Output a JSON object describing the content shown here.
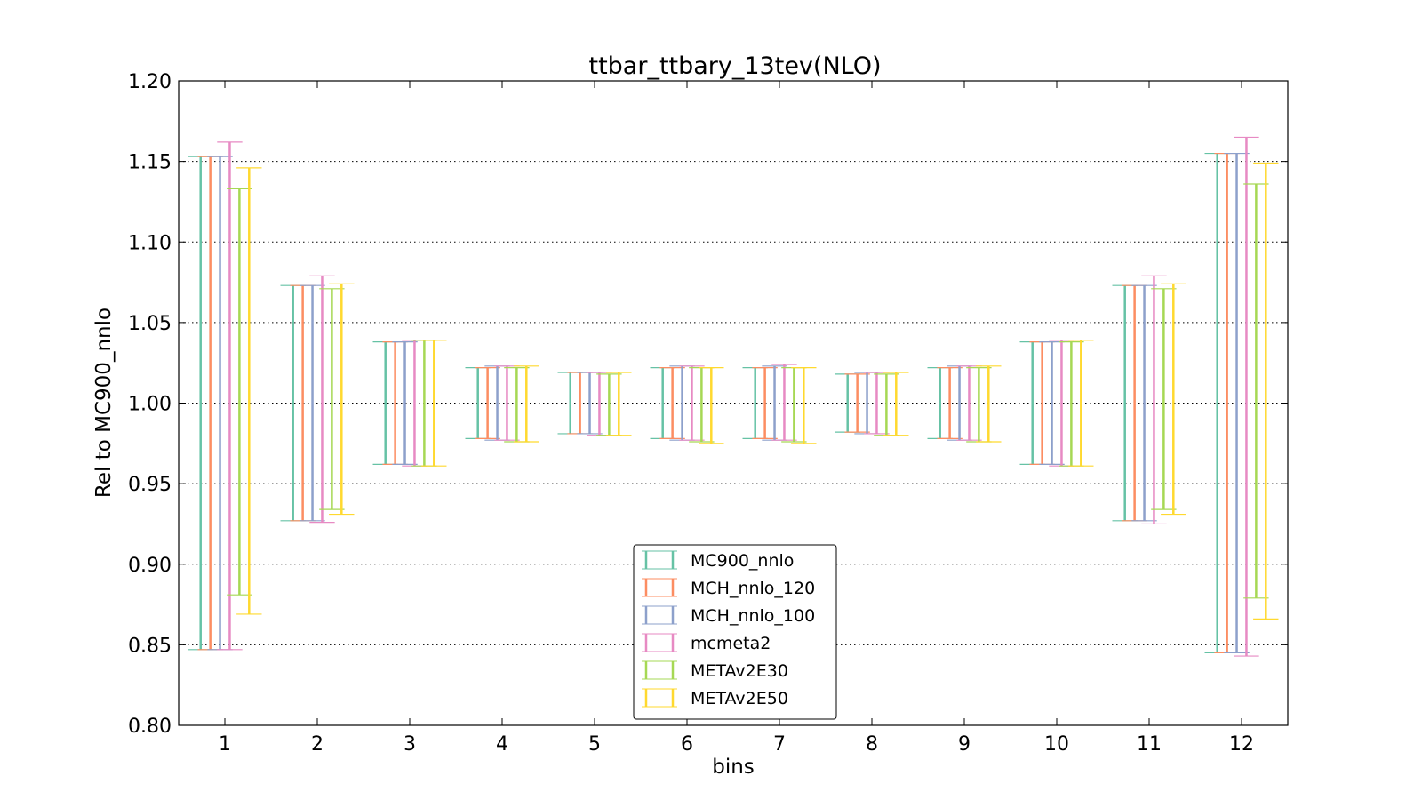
{
  "chart_data": {
    "type": "errorbar",
    "title": "ttbar_ttbary_13tev(NLO)",
    "xlabel": "bins",
    "ylabel": "Rel to MC900_nnlo",
    "ylim": [
      0.8,
      1.2
    ],
    "yticks": [
      "0.80",
      "0.85",
      "0.90",
      "0.95",
      "1.00",
      "1.05",
      "1.10",
      "1.15",
      "1.20"
    ],
    "categories": [
      "1",
      "2",
      "3",
      "4",
      "5",
      "6",
      "7",
      "8",
      "9",
      "10",
      "11",
      "12"
    ],
    "grid": "horizontal dotted",
    "legend_position": "lower center",
    "series": [
      {
        "name": "MC900_nnlo",
        "color": "#66c2a5",
        "low": [
          0.847,
          0.927,
          0.962,
          0.978,
          0.981,
          0.978,
          0.978,
          0.982,
          0.978,
          0.962,
          0.927,
          0.845
        ],
        "high": [
          1.153,
          1.073,
          1.038,
          1.022,
          1.019,
          1.022,
          1.022,
          1.018,
          1.022,
          1.038,
          1.073,
          1.155
        ]
      },
      {
        "name": "MCH_nnlo_120",
        "color": "#fc8d62",
        "low": [
          0.847,
          0.927,
          0.962,
          0.978,
          0.981,
          0.978,
          0.978,
          0.982,
          0.978,
          0.962,
          0.927,
          0.845
        ],
        "high": [
          1.153,
          1.073,
          1.038,
          1.022,
          1.019,
          1.022,
          1.022,
          1.018,
          1.022,
          1.038,
          1.073,
          1.155
        ]
      },
      {
        "name": "MCH_nnlo_100",
        "color": "#8da0cb",
        "low": [
          0.847,
          0.927,
          0.962,
          0.977,
          0.981,
          0.977,
          0.977,
          0.981,
          0.977,
          0.962,
          0.927,
          0.845
        ],
        "high": [
          1.153,
          1.073,
          1.038,
          1.023,
          1.019,
          1.023,
          1.023,
          1.019,
          1.023,
          1.038,
          1.073,
          1.155
        ]
      },
      {
        "name": "mcmeta2",
        "color": "#e78ac3",
        "low": [
          0.847,
          0.926,
          0.961,
          0.977,
          0.98,
          0.977,
          0.977,
          0.981,
          0.977,
          0.961,
          0.925,
          0.843
        ],
        "high": [
          1.162,
          1.079,
          1.039,
          1.023,
          1.019,
          1.023,
          1.024,
          1.019,
          1.023,
          1.039,
          1.079,
          1.165
        ]
      },
      {
        "name": "METAv2E30",
        "color": "#a6d854",
        "low": [
          0.881,
          0.934,
          0.961,
          0.976,
          0.98,
          0.976,
          0.976,
          0.98,
          0.976,
          0.961,
          0.934,
          0.879
        ],
        "high": [
          1.133,
          1.071,
          1.039,
          1.022,
          1.018,
          1.022,
          1.022,
          1.018,
          1.022,
          1.038,
          1.071,
          1.136
        ]
      },
      {
        "name": "METAv2E50",
        "color": "#ffd92f",
        "low": [
          0.869,
          0.931,
          0.961,
          0.976,
          0.98,
          0.975,
          0.975,
          0.98,
          0.976,
          0.961,
          0.931,
          0.866
        ],
        "high": [
          1.146,
          1.074,
          1.039,
          1.023,
          1.019,
          1.022,
          1.022,
          1.019,
          1.023,
          1.039,
          1.074,
          1.149
        ]
      }
    ]
  }
}
